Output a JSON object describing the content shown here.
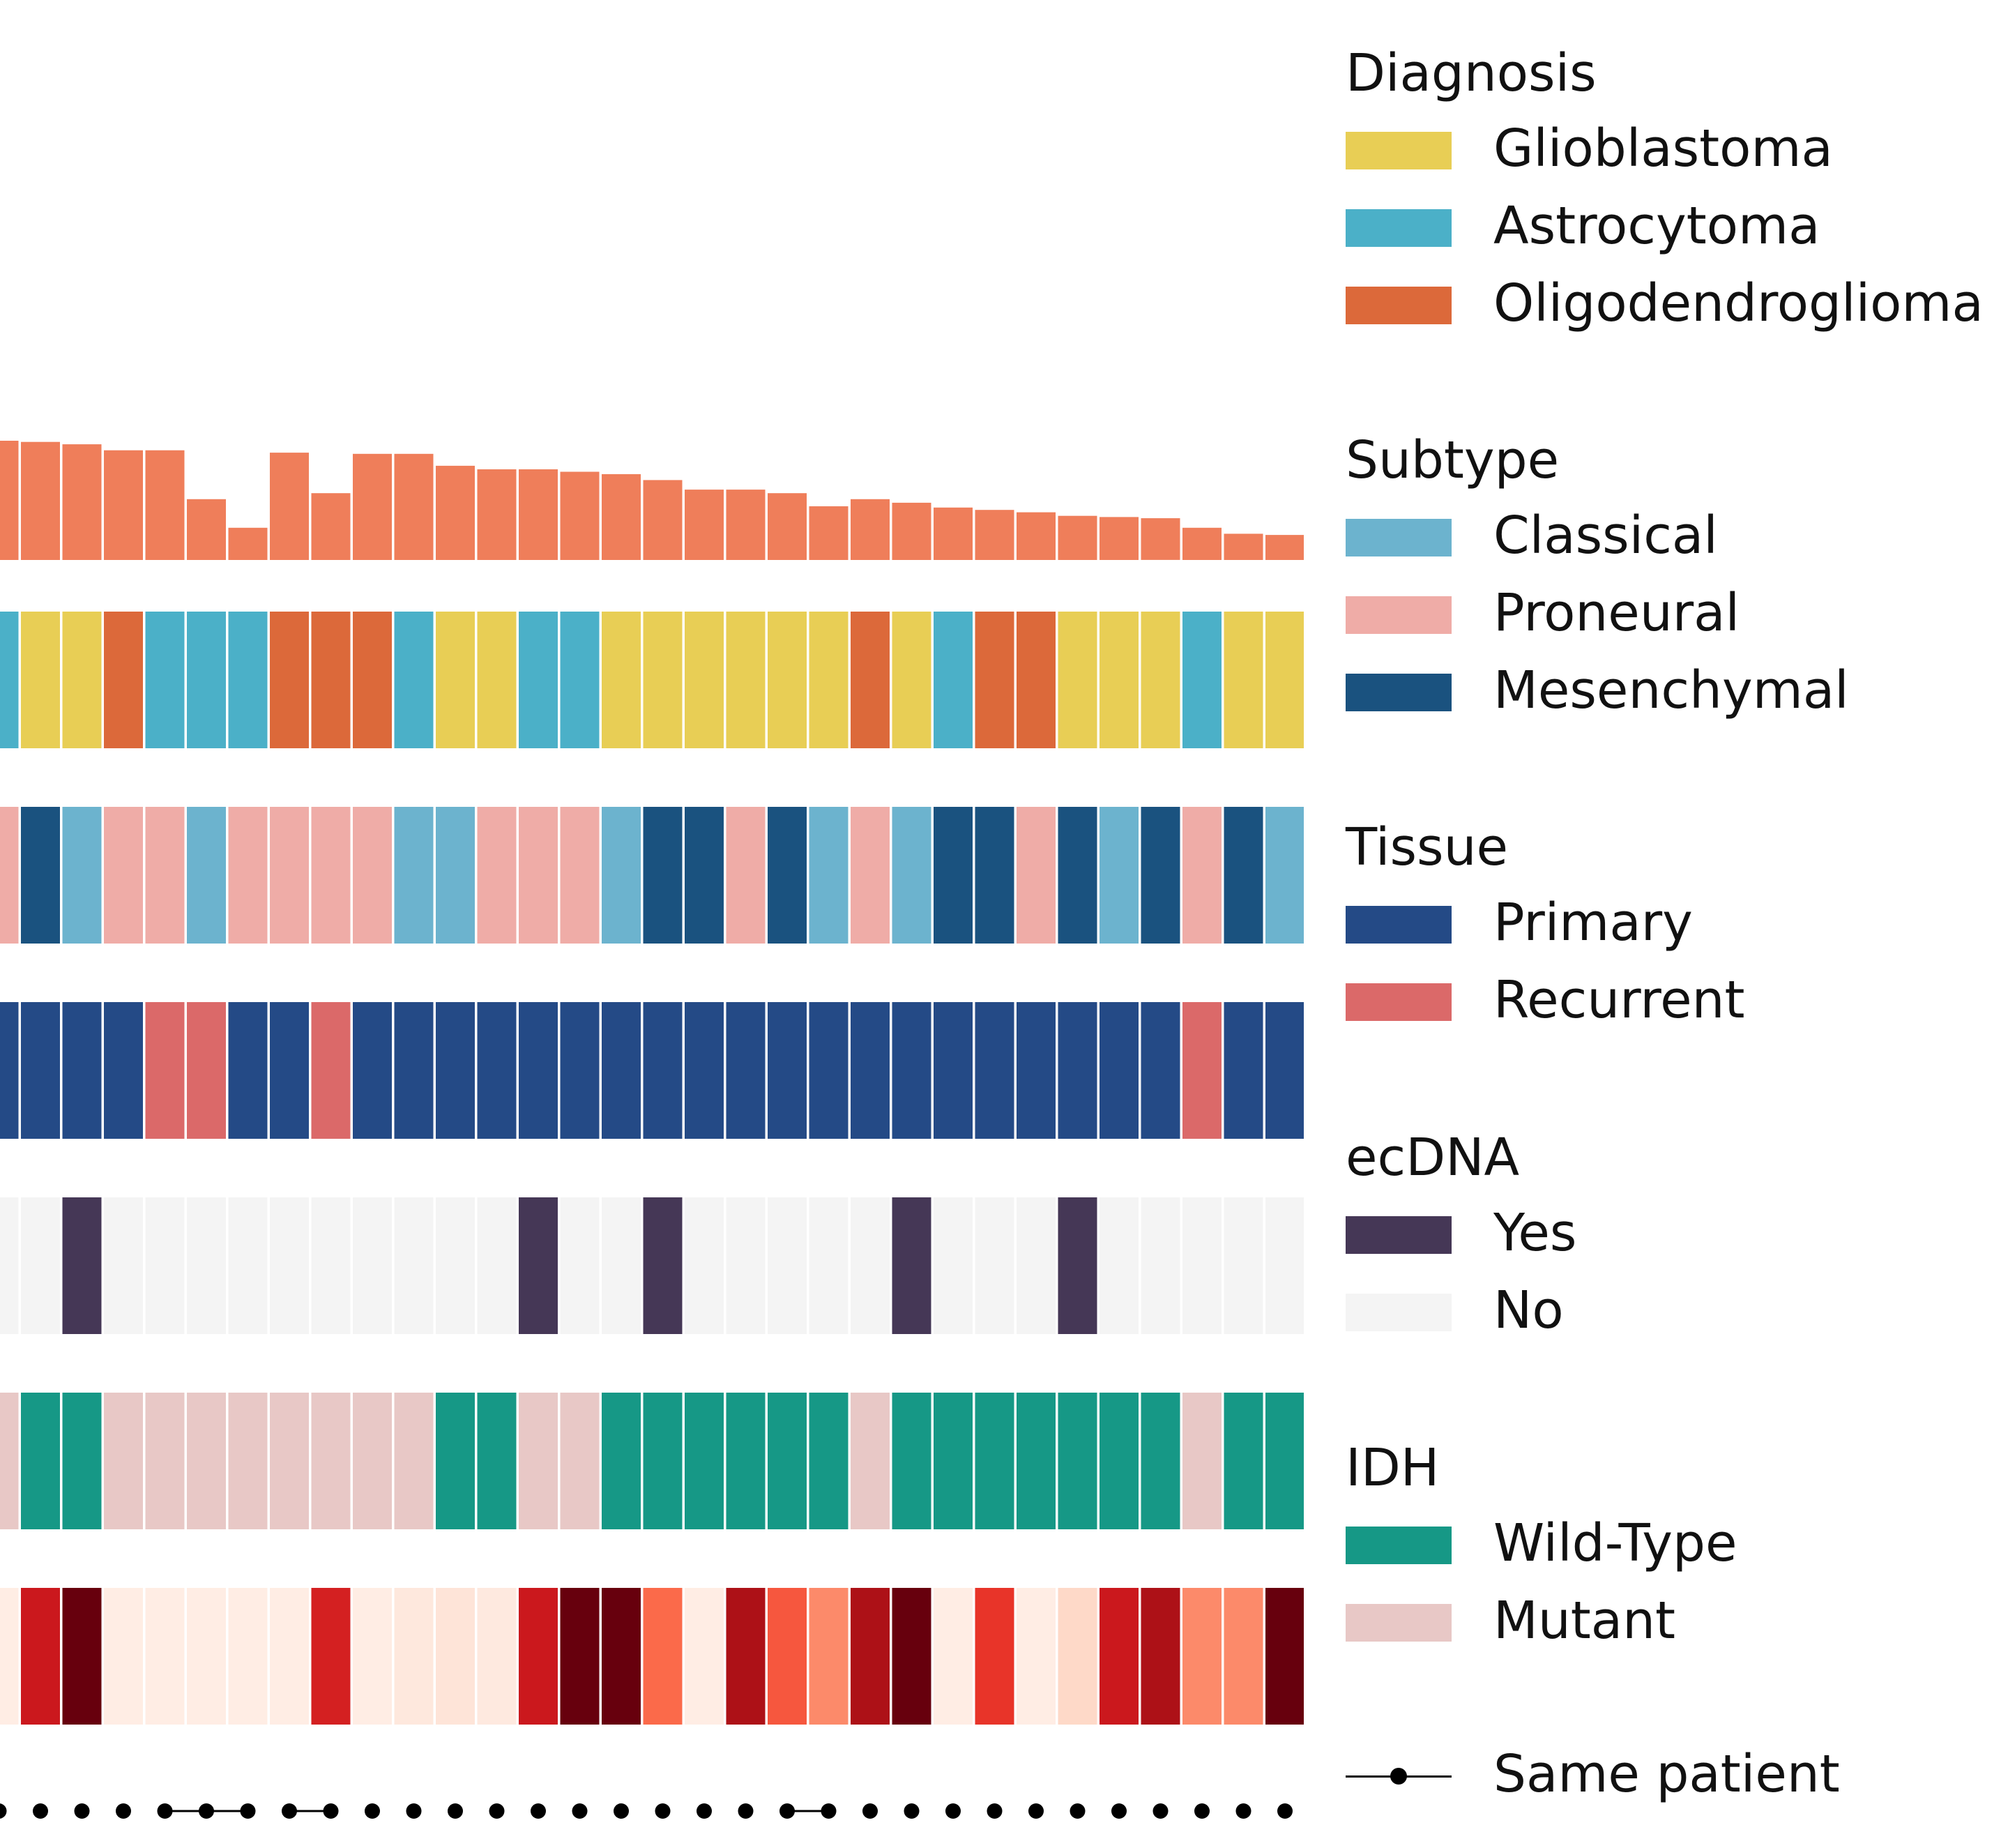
{
  "chart_data": {
    "type": "heatmap",
    "title": "",
    "note": "Oncoprint-style sample annotation panel; columns are samples (visible portion, leftmost cut off).",
    "n_columns": 32,
    "top_bar": {
      "type": "bar",
      "color": "#EF7E5A",
      "values": [
        100,
        99,
        97,
        92,
        92,
        51,
        27,
        90,
        56,
        89,
        89,
        79,
        76,
        76,
        74,
        72,
        67,
        59,
        59,
        56,
        45,
        51,
        48,
        44,
        42,
        40,
        37,
        36,
        35,
        27,
        22,
        21
      ]
    },
    "tracks": [
      {
        "name": "Diagnosis",
        "values": [
          "Astrocytoma",
          "Glioblastoma",
          "Glioblastoma",
          "Oligodendroglioma",
          "Astrocytoma",
          "Astrocytoma",
          "Astrocytoma",
          "Oligodendroglioma",
          "Oligodendroglioma",
          "Oligodendroglioma",
          "Astrocytoma",
          "Glioblastoma",
          "Glioblastoma",
          "Astrocytoma",
          "Astrocytoma",
          "Glioblastoma",
          "Glioblastoma",
          "Glioblastoma",
          "Glioblastoma",
          "Glioblastoma",
          "Glioblastoma",
          "Oligodendroglioma",
          "Glioblastoma",
          "Astrocytoma",
          "Oligodendroglioma",
          "Oligodendroglioma",
          "Glioblastoma",
          "Glioblastoma",
          "Glioblastoma",
          "Astrocytoma",
          "Glioblastoma",
          "Glioblastoma"
        ]
      },
      {
        "name": "Subtype",
        "values": [
          "Proneural",
          "Mesenchymal",
          "Classical",
          "Proneural",
          "Proneural",
          "Classical",
          "Proneural",
          "Proneural",
          "Proneural",
          "Proneural",
          "Classical",
          "Classical",
          "Proneural",
          "Proneural",
          "Proneural",
          "Classical",
          "Mesenchymal",
          "Mesenchymal",
          "Proneural",
          "Mesenchymal",
          "Classical",
          "Proneural",
          "Classical",
          "Mesenchymal",
          "Mesenchymal",
          "Proneural",
          "Mesenchymal",
          "Classical",
          "Mesenchymal",
          "Proneural",
          "Mesenchymal",
          "Classical"
        ]
      },
      {
        "name": "Tissue",
        "values": [
          "Primary",
          "Primary",
          "Primary",
          "Primary",
          "Recurrent",
          "Recurrent",
          "Primary",
          "Primary",
          "Recurrent",
          "Primary",
          "Primary",
          "Primary",
          "Primary",
          "Primary",
          "Primary",
          "Primary",
          "Primary",
          "Primary",
          "Primary",
          "Primary",
          "Primary",
          "Primary",
          "Primary",
          "Primary",
          "Primary",
          "Primary",
          "Primary",
          "Primary",
          "Primary",
          "Recurrent",
          "Primary",
          "Primary"
        ]
      },
      {
        "name": "ecDNA",
        "values": [
          "No",
          "No",
          "Yes",
          "No",
          "No",
          "No",
          "No",
          "No",
          "No",
          "No",
          "No",
          "No",
          "No",
          "Yes",
          "No",
          "No",
          "Yes",
          "No",
          "No",
          "No",
          "No",
          "No",
          "Yes",
          "No",
          "No",
          "No",
          "Yes",
          "No",
          "No",
          "No",
          "No",
          "No"
        ]
      },
      {
        "name": "IDH",
        "values": [
          "Mutant",
          "Wild-Type",
          "Wild-Type",
          "Mutant",
          "Mutant",
          "Mutant",
          "Mutant",
          "Mutant",
          "Mutant",
          "Mutant",
          "Mutant",
          "Wild-Type",
          "Wild-Type",
          "Mutant",
          "Mutant",
          "Wild-Type",
          "Wild-Type",
          "Wild-Type",
          "Wild-Type",
          "Wild-Type",
          "Wild-Type",
          "Mutant",
          "Wild-Type",
          "Wild-Type",
          "Wild-Type",
          "Wild-Type",
          "Wild-Type",
          "Wild-Type",
          "Wild-Type",
          "Mutant",
          "Wild-Type",
          "Wild-Type"
        ]
      },
      {
        "name": "",
        "scale": "Reds, 0 (lightest) to 1 (darkest)",
        "values": [
          0.05,
          0.75,
          1.0,
          0.05,
          0.05,
          0.05,
          0.05,
          0.05,
          0.72,
          0.05,
          0.08,
          0.1,
          0.07,
          0.75,
          1.0,
          1.0,
          0.5,
          0.05,
          0.85,
          0.55,
          0.4,
          0.85,
          1.0,
          0.05,
          0.65,
          0.05,
          0.15,
          0.75,
          0.85,
          0.4,
          0.4,
          1.0
        ]
      }
    ],
    "patient_links": {
      "label": "Same patient",
      "groups": [
        [
          4,
          5,
          6
        ],
        [
          7,
          8
        ],
        [
          19,
          20
        ]
      ]
    },
    "legend": [
      {
        "title": "Diagnosis",
        "items": [
          {
            "label": "Glioblastoma",
            "color": "#E8CE55"
          },
          {
            "label": "Astrocytoma",
            "color": "#4BB0C8"
          },
          {
            "label": "Oligodendroglioma",
            "color": "#DC693A"
          }
        ]
      },
      {
        "title": "Subtype",
        "items": [
          {
            "label": "Classical",
            "color": "#6CB3CE"
          },
          {
            "label": "Proneural",
            "color": "#EFACA7"
          },
          {
            "label": "Mesenchymal",
            "color": "#1A527F"
          }
        ]
      },
      {
        "title": "Tissue",
        "items": [
          {
            "label": "Primary",
            "color": "#244A86"
          },
          {
            "label": "Recurrent",
            "color": "#DB6969"
          }
        ]
      },
      {
        "title": "ecDNA",
        "items": [
          {
            "label": "Yes",
            "color": "#453756"
          },
          {
            "label": "No",
            "color": "#F4F4F4"
          }
        ]
      },
      {
        "title": "IDH",
        "items": [
          {
            "label": "Wild-Type",
            "color": "#169886"
          },
          {
            "label": "Mutant",
            "color": "#E8C8C6"
          }
        ]
      }
    ],
    "legend_link_label": "Same patient"
  }
}
